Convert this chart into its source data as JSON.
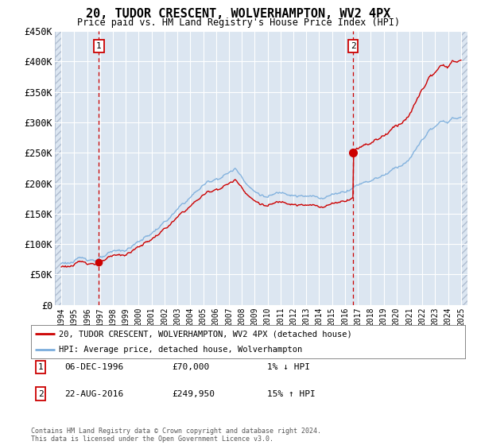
{
  "title": "20, TUDOR CRESCENT, WOLVERHAMPTON, WV2 4PX",
  "subtitle": "Price paid vs. HM Land Registry's House Price Index (HPI)",
  "legend_line1": "20, TUDOR CRESCENT, WOLVERHAMPTON, WV2 4PX (detached house)",
  "legend_line2": "HPI: Average price, detached house, Wolverhampton",
  "annotation1_date": "06-DEC-1996",
  "annotation1_price": "£70,000",
  "annotation1_hpi": "1% ↓ HPI",
  "annotation2_date": "22-AUG-2016",
  "annotation2_price": "£249,950",
  "annotation2_hpi": "15% ↑ HPI",
  "footnote": "Contains HM Land Registry data © Crown copyright and database right 2024.\nThis data is licensed under the Open Government Licence v3.0.",
  "sale1_year": 1996.92,
  "sale1_price": 70000,
  "sale2_year": 2016.64,
  "sale2_price": 249950,
  "red_line_color": "#cc0000",
  "blue_line_color": "#7aaddc",
  "background_color": "#dce6f1",
  "hatch_edgecolor": "#b0bdd0",
  "grid_color": "#ffffff",
  "ylim": [
    0,
    450000
  ],
  "xlim_start": 1993.5,
  "xlim_end": 2025.5,
  "yticks": [
    0,
    50000,
    100000,
    150000,
    200000,
    250000,
    300000,
    350000,
    400000,
    450000
  ],
  "ytick_labels": [
    "£0",
    "£50K",
    "£100K",
    "£150K",
    "£200K",
    "£250K",
    "£300K",
    "£350K",
    "£400K",
    "£450K"
  ],
  "xticks": [
    1994,
    1995,
    1996,
    1997,
    1998,
    1999,
    2000,
    2001,
    2002,
    2003,
    2004,
    2005,
    2006,
    2007,
    2008,
    2009,
    2010,
    2011,
    2012,
    2013,
    2014,
    2015,
    2016,
    2017,
    2018,
    2019,
    2020,
    2021,
    2022,
    2023,
    2024,
    2025
  ]
}
